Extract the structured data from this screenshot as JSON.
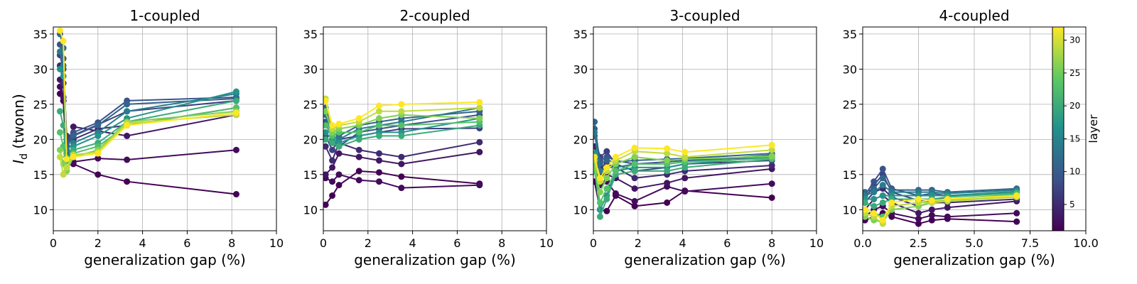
{
  "chart_data": [
    {
      "type": "line",
      "title": "1-coupled",
      "xlabel": "generalization gap (%)",
      "ylabel_italic": "I",
      "ylabel_sub": "d",
      "ylabel_rest": " (twonn)",
      "xlim": [
        0,
        10
      ],
      "ylim": [
        7,
        36
      ],
      "xticks": [
        "0",
        "2",
        "4",
        "6",
        "8",
        "10"
      ],
      "xtick_values": [
        0,
        2,
        4,
        6,
        8,
        10
      ],
      "yticks": [
        "10",
        "15",
        "20",
        "25",
        "30",
        "35"
      ],
      "ytick_values": [
        10,
        15,
        20,
        25,
        30,
        35
      ],
      "grid": true,
      "x": [
        0.3,
        0.45,
        0.6,
        0.9,
        2.0,
        3.3,
        8.2
      ],
      "series": [
        {
          "layer": 1,
          "values": [
            26.5,
            25.5,
            18.0,
            16.5,
            15.0,
            14.0,
            12.2
          ]
        },
        {
          "layer": 2,
          "values": [
            27.5,
            25.5,
            17.0,
            16.8,
            17.3,
            17.1,
            18.5
          ]
        },
        {
          "layer": 3,
          "values": [
            28.5,
            26.0,
            19.0,
            21.8,
            21.2,
            20.5,
            23.5
          ]
        },
        {
          "layer": 5,
          "values": [
            30.5,
            28.0,
            20.0,
            20.0,
            21.5,
            22.0,
            24.5
          ]
        },
        {
          "layer": 7,
          "values": [
            32.0,
            30.0,
            20.5,
            20.6,
            22.1,
            24.0,
            25.5
          ]
        },
        {
          "layer": 9,
          "values": [
            33.5,
            31.5,
            19.5,
            21.0,
            22.4,
            25.5,
            26.0
          ]
        },
        {
          "layer": 11,
          "values": [
            35.0,
            33.0,
            19.0,
            20.5,
            22.0,
            25.0,
            25.8
          ]
        },
        {
          "layer": 14,
          "values": [
            32.5,
            30.5,
            18.5,
            19.5,
            21.0,
            24.0,
            26.5
          ]
        },
        {
          "layer": 17,
          "values": [
            30.0,
            29.0,
            17.5,
            19.0,
            20.5,
            23.0,
            26.8
          ]
        },
        {
          "layer": 20,
          "values": [
            24.0,
            22.0,
            17.0,
            18.5,
            19.5,
            22.5,
            25.5
          ]
        },
        {
          "layer": 23,
          "values": [
            21.0,
            19.0,
            16.0,
            18.0,
            19.0,
            22.0,
            24.5
          ]
        },
        {
          "layer": 26,
          "values": [
            18.5,
            16.5,
            15.5,
            17.5,
            18.5,
            22.5,
            24.0
          ]
        },
        {
          "layer": 29,
          "values": [
            17.5,
            15.0,
            16.0,
            17.8,
            18.2,
            22.3,
            23.5
          ]
        },
        {
          "layer": 32,
          "values": [
            35.5,
            34.0,
            17.2,
            17.5,
            18.0,
            22.0,
            23.8
          ]
        }
      ]
    },
    {
      "type": "line",
      "title": "2-coupled",
      "xlabel": "generalization gap (%)",
      "xlim": [
        0,
        10
      ],
      "ylim": [
        7,
        36
      ],
      "xticks": [
        "0",
        "2",
        "4",
        "6",
        "8",
        "10"
      ],
      "xtick_values": [
        0,
        2,
        4,
        6,
        8,
        10
      ],
      "yticks": [
        "10",
        "15",
        "20",
        "25",
        "30",
        "35"
      ],
      "ytick_values": [
        10,
        15,
        20,
        25,
        30,
        35
      ],
      "grid": true,
      "x": [
        0.1,
        0.4,
        0.7,
        1.6,
        2.5,
        3.5,
        7.0
      ],
      "series": [
        {
          "layer": 1,
          "values": [
            10.7,
            12.0,
            13.5,
            15.5,
            15.3,
            14.7,
            13.7
          ]
        },
        {
          "layer": 2,
          "values": [
            14.5,
            14.0,
            15.0,
            14.2,
            14.0,
            13.1,
            13.5
          ]
        },
        {
          "layer": 3,
          "values": [
            15.0,
            16.0,
            18.0,
            17.5,
            17.0,
            16.5,
            18.2
          ]
        },
        {
          "layer": 5,
          "values": [
            19.0,
            17.0,
            19.5,
            18.5,
            18.0,
            17.5,
            19.6
          ]
        },
        {
          "layer": 7,
          "values": [
            20.5,
            18.5,
            20.0,
            20.5,
            21.0,
            21.5,
            21.6
          ]
        },
        {
          "layer": 9,
          "values": [
            22.5,
            20.0,
            19.0,
            21.0,
            21.5,
            22.0,
            23.5
          ]
        },
        {
          "layer": 11,
          "values": [
            24.5,
            21.0,
            20.5,
            22.0,
            22.5,
            23.0,
            24.0
          ]
        },
        {
          "layer": 14,
          "values": [
            23.5,
            20.5,
            20.0,
            21.5,
            22.0,
            22.5,
            24.5
          ]
        },
        {
          "layer": 17,
          "values": [
            21.0,
            20.0,
            19.5,
            20.5,
            21.0,
            21.0,
            23.0
          ]
        },
        {
          "layer": 20,
          "values": [
            20.0,
            19.5,
            19.0,
            20.0,
            20.5,
            20.5,
            22.0
          ]
        },
        {
          "layer": 23,
          "values": [
            22.0,
            20.5,
            21.0,
            21.0,
            22.0,
            22.0,
            22.5
          ]
        },
        {
          "layer": 26,
          "values": [
            24.0,
            21.0,
            21.5,
            22.0,
            23.0,
            23.5,
            23.0
          ]
        },
        {
          "layer": 29,
          "values": [
            25.8,
            21.5,
            22.0,
            22.5,
            24.0,
            24.0,
            24.5
          ]
        },
        {
          "layer": 32,
          "values": [
            25.5,
            22.0,
            22.2,
            23.0,
            24.8,
            25.0,
            25.3
          ]
        }
      ]
    },
    {
      "type": "line",
      "title": "3-coupled",
      "xlabel": "generalization gap (%)",
      "xlim": [
        0,
        10
      ],
      "ylim": [
        7,
        36
      ],
      "xticks": [
        "0",
        "2",
        "4",
        "6",
        "8",
        "10"
      ],
      "xtick_values": [
        0,
        2,
        4,
        6,
        8,
        10
      ],
      "yticks": [
        "10",
        "15",
        "20",
        "25",
        "30",
        "35"
      ],
      "ytick_values": [
        10,
        15,
        20,
        25,
        30,
        35
      ],
      "grid": true,
      "x": [
        0.05,
        0.3,
        0.6,
        1.0,
        1.85,
        3.3,
        4.1,
        8.0
      ],
      "series": [
        {
          "layer": 1,
          "values": [
            14.0,
            10.0,
            9.8,
            12.0,
            10.5,
            11.0,
            12.7,
            11.7
          ]
        },
        {
          "layer": 2,
          "values": [
            16.0,
            13.5,
            14.0,
            12.3,
            11.2,
            13.3,
            12.6,
            13.7
          ]
        },
        {
          "layer": 3,
          "values": [
            17.5,
            15.0,
            15.0,
            14.5,
            13.0,
            13.8,
            14.5,
            15.8
          ]
        },
        {
          "layer": 5,
          "values": [
            19.0,
            16.0,
            16.5,
            16.0,
            14.5,
            15.0,
            15.5,
            16.3
          ]
        },
        {
          "layer": 7,
          "values": [
            20.5,
            17.5,
            18.3,
            16.5,
            15.5,
            16.0,
            16.5,
            17.0
          ]
        },
        {
          "layer": 9,
          "values": [
            21.5,
            17.0,
            17.5,
            17.0,
            16.5,
            16.8,
            17.0,
            17.5
          ]
        },
        {
          "layer": 11,
          "values": [
            22.5,
            16.5,
            17.0,
            16.8,
            17.0,
            17.2,
            17.3,
            18.0
          ]
        },
        {
          "layer": 14,
          "values": [
            21.0,
            15.5,
            16.0,
            16.0,
            16.5,
            16.5,
            16.8,
            17.8
          ]
        },
        {
          "layer": 17,
          "values": [
            18.0,
            10.0,
            12.0,
            15.5,
            16.0,
            16.0,
            16.5,
            17.5
          ]
        },
        {
          "layer": 20,
          "values": [
            16.5,
            9.0,
            11.5,
            15.0,
            15.5,
            15.5,
            16.0,
            17.2
          ]
        },
        {
          "layer": 23,
          "values": [
            15.5,
            11.0,
            13.0,
            15.5,
            16.5,
            16.5,
            16.8,
            17.3
          ]
        },
        {
          "layer": 26,
          "values": [
            16.0,
            12.5,
            14.5,
            16.5,
            17.5,
            17.0,
            17.2,
            17.6
          ]
        },
        {
          "layer": 29,
          "values": [
            17.0,
            14.0,
            15.5,
            17.0,
            18.3,
            18.0,
            17.5,
            18.5
          ]
        },
        {
          "layer": 32,
          "values": [
            17.5,
            14.5,
            16.0,
            17.5,
            18.8,
            18.7,
            18.2,
            19.2
          ]
        }
      ]
    },
    {
      "type": "line",
      "title": "4-coupled",
      "xlabel": "generalization gap (%)",
      "xlim": [
        0,
        10
      ],
      "ylim": [
        7,
        36
      ],
      "xticks": [
        "0.0",
        "2.5",
        "5.0",
        "7.5",
        "10.0"
      ],
      "xtick_values": [
        0,
        2.5,
        5,
        7.5,
        10
      ],
      "yticks": [
        "10",
        "15",
        "20",
        "25",
        "30",
        "35"
      ],
      "ytick_values": [
        10,
        15,
        20,
        25,
        30,
        35
      ],
      "grid": true,
      "x": [
        0.1,
        0.5,
        0.9,
        1.3,
        2.5,
        3.1,
        3.8,
        6.9
      ],
      "series": [
        {
          "layer": 1,
          "values": [
            8.5,
            9.0,
            9.5,
            9.0,
            8.0,
            8.5,
            8.7,
            8.3
          ]
        },
        {
          "layer": 2,
          "values": [
            9.0,
            10.0,
            10.5,
            9.5,
            8.7,
            9.2,
            9.0,
            9.5
          ]
        },
        {
          "layer": 3,
          "values": [
            10.0,
            11.5,
            12.0,
            11.0,
            9.5,
            10.0,
            10.3,
            11.2
          ]
        },
        {
          "layer": 5,
          "values": [
            11.0,
            12.5,
            13.0,
            11.8,
            10.5,
            11.0,
            11.0,
            11.5
          ]
        },
        {
          "layer": 7,
          "values": [
            11.5,
            13.5,
            15.0,
            12.5,
            11.3,
            11.5,
            11.5,
            12.0
          ]
        },
        {
          "layer": 9,
          "values": [
            12.0,
            14.0,
            15.8,
            13.0,
            12.0,
            12.3,
            12.0,
            12.5
          ]
        },
        {
          "layer": 11,
          "values": [
            12.5,
            13.0,
            14.5,
            12.8,
            12.8,
            12.8,
            12.5,
            13.0
          ]
        },
        {
          "layer": 14,
          "values": [
            12.0,
            12.5,
            13.5,
            12.5,
            12.5,
            12.5,
            12.3,
            12.8
          ]
        },
        {
          "layer": 17,
          "values": [
            11.5,
            11.5,
            12.0,
            12.0,
            12.0,
            12.0,
            12.0,
            12.6
          ]
        },
        {
          "layer": 20,
          "values": [
            11.0,
            10.5,
            11.0,
            11.5,
            11.5,
            11.5,
            11.8,
            12.4
          ]
        },
        {
          "layer": 23,
          "values": [
            10.0,
            9.5,
            9.0,
            10.5,
            11.0,
            11.2,
            11.5,
            12.2
          ]
        },
        {
          "layer": 26,
          "values": [
            9.0,
            8.5,
            8.2,
            10.0,
            10.5,
            11.0,
            11.3,
            12.0
          ]
        },
        {
          "layer": 29,
          "values": [
            9.5,
            9.0,
            8.0,
            10.5,
            11.0,
            11.0,
            11.2,
            11.8
          ]
        },
        {
          "layer": 32,
          "values": [
            10.0,
            9.5,
            8.5,
            11.0,
            11.5,
            11.3,
            11.5,
            12.0
          ]
        }
      ]
    }
  ],
  "colorbar": {
    "label": "layer",
    "min": 1,
    "max": 32,
    "ticks": [
      "5",
      "10",
      "15",
      "20",
      "25",
      "30"
    ],
    "tick_values": [
      5,
      10,
      15,
      20,
      25,
      30
    ],
    "colormap": [
      "#440154",
      "#3b528b",
      "#21908d",
      "#5dc963",
      "#fde725"
    ]
  }
}
